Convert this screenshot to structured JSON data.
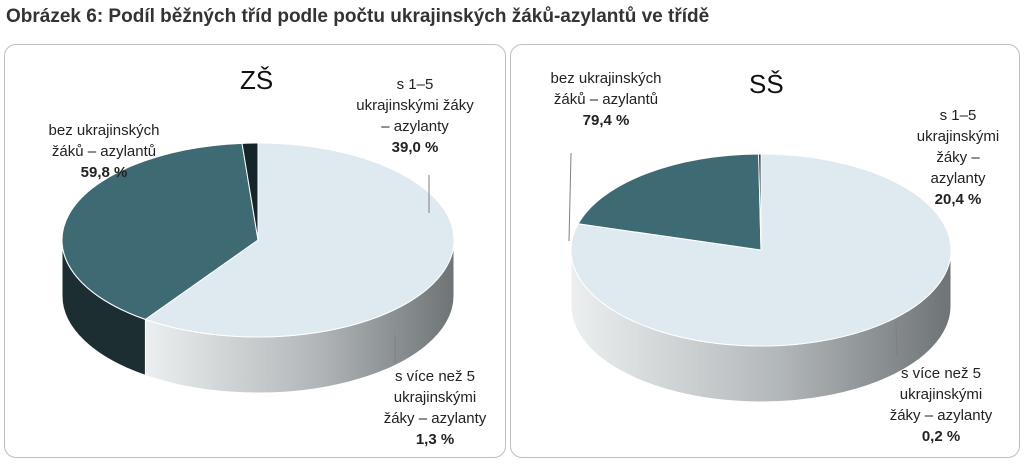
{
  "figure_title": "Obrázek 6: Podíl běžných tříd podle počtu ukrajinských žáků-azylantů ve třídě",
  "colors": {
    "bez": "#deeaf0",
    "s1_5": "#3d6a73",
    "s_vice": "#14262a",
    "side_light": "#b2b7b9",
    "side_dark": "#1c2e31",
    "leader": "#7f7f7f"
  },
  "chart_data": [
    {
      "type": "pie",
      "title": "ZŠ",
      "categories": [
        "bez ukrajinských žáků – azylantů",
        "s 1–5 ukrajinskými žáky – azylanty",
        "s více než 5 ukrajinskými žáky – azylanty"
      ],
      "values": [
        59.8,
        39.0,
        1.3
      ],
      "label_lines": [
        [
          "bez ukrajinských",
          "žáků – azylantů"
        ],
        [
          "s 1–5",
          "ukrajinskými žáky",
          "– azylanty"
        ],
        [
          "s více než 5",
          "ukrajinskými",
          "žáky – azylanty"
        ]
      ],
      "value_labels": [
        "59,8 %",
        "39,0 %",
        "1,3 %"
      ]
    },
    {
      "type": "pie",
      "title": "SŠ",
      "categories": [
        "bez ukrajinských žáků – azylantů",
        "s 1–5 ukrajinskými žáky – azylanty",
        "s více než 5 ukrajinskými žáky – azylanty"
      ],
      "values": [
        79.4,
        20.4,
        0.2
      ],
      "label_lines": [
        [
          "bez ukrajinských",
          "žáků – azylantů"
        ],
        [
          "s 1–5",
          "ukrajinskými",
          "žáky –",
          "azylanty"
        ],
        [
          "s více než 5",
          "ukrajinskými",
          "žáky – azylanty"
        ]
      ],
      "value_labels": [
        "79,4 %",
        "20,4 %",
        "0,2 %"
      ]
    }
  ]
}
